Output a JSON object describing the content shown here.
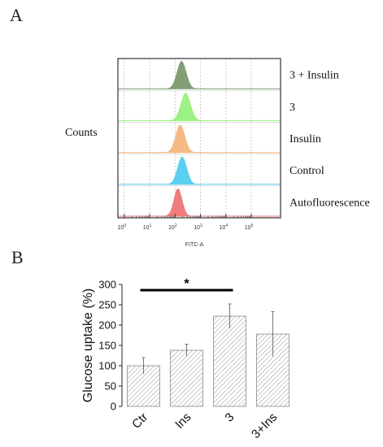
{
  "panels": [
    {
      "letter": "A"
    },
    {
      "letter": "B"
    }
  ],
  "chart_data": [
    {
      "type": "area",
      "chart_title": "",
      "y_label": "Counts",
      "x_label": "FITC-A",
      "x_scale": "log",
      "x_ticks": [
        {
          "base": "10",
          "exp": "0",
          "value": 1
        },
        {
          "base": "10",
          "exp": "1",
          "value": 10
        },
        {
          "base": "10",
          "exp": "2",
          "value": 100
        },
        {
          "base": "10",
          "exp": "3",
          "value": 1000
        },
        {
          "base": "10",
          "exp": "4",
          "value": 10000
        },
        {
          "base": "10",
          "exp": "5",
          "value": 100000
        }
      ],
      "grid": "vertical dashed at each decade",
      "series": [
        {
          "name": "3 + Insulin",
          "peak": 180,
          "width": 0.18,
          "color": "#7c9a6e"
        },
        {
          "name": "3",
          "peak": 260,
          "width": 0.19,
          "color": "#96f07c"
        },
        {
          "name": "Insulin",
          "peak": 160,
          "width": 0.18,
          "color": "#f5b57c"
        },
        {
          "name": "Control",
          "peak": 190,
          "width": 0.18,
          "color": "#52cdee"
        },
        {
          "name": "Autofluorescence",
          "peak": 130,
          "width": 0.16,
          "color": "#ee7676"
        }
      ]
    },
    {
      "type": "bar",
      "chart_title": "",
      "categories": [
        "Ctr",
        "Ins",
        "3",
        "3+Ins"
      ],
      "values": [
        100,
        138,
        222,
        178
      ],
      "errors": [
        20,
        15,
        30,
        55
      ],
      "ylabel": "Glucose uptake (%)",
      "xlabel": "",
      "ylim": [
        0,
        300
      ],
      "yticks": [
        "0",
        "50",
        "100",
        "150",
        "200",
        "250",
        "300"
      ],
      "significance": {
        "from": "Ctr",
        "to": "3",
        "label": "*"
      },
      "bar_fill": "hatched"
    }
  ]
}
